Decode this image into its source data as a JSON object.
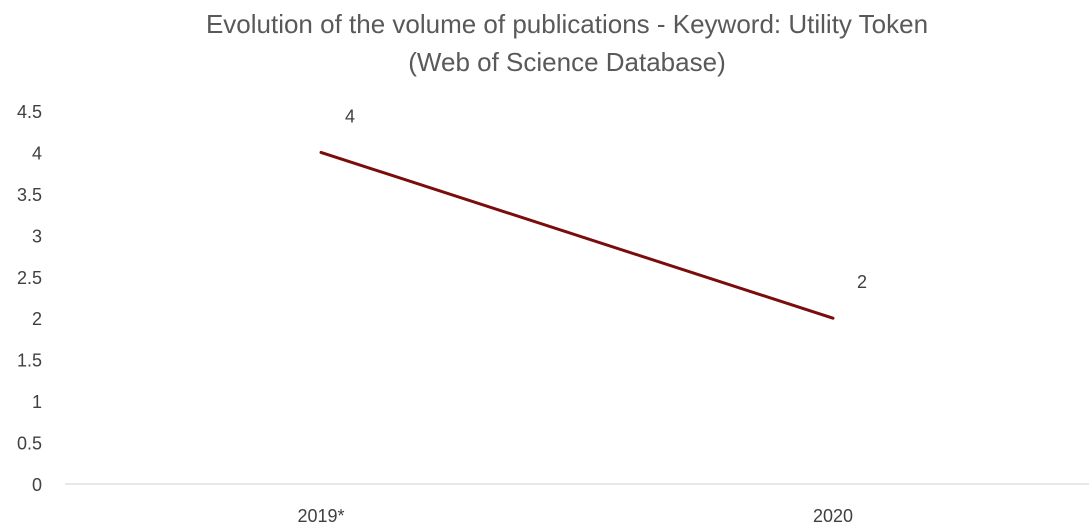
{
  "chart_data": {
    "type": "line",
    "title": "Evolution of the volume of publications - Keyword: Utility Token",
    "subtitle": "(Web of Science  Database)",
    "categories": [
      "2019*",
      "2020"
    ],
    "series": [
      {
        "values": [
          4,
          2
        ],
        "color": "#7B0C0C"
      }
    ],
    "data_labels": [
      "4",
      "2"
    ],
    "y_ticks": [
      "0",
      "0.5",
      "1",
      "1.5",
      "2",
      "2.5",
      "3",
      "3.5",
      "4",
      "4.5"
    ],
    "ylim": [
      0,
      4.5
    ],
    "grid": false,
    "legend": "none"
  }
}
